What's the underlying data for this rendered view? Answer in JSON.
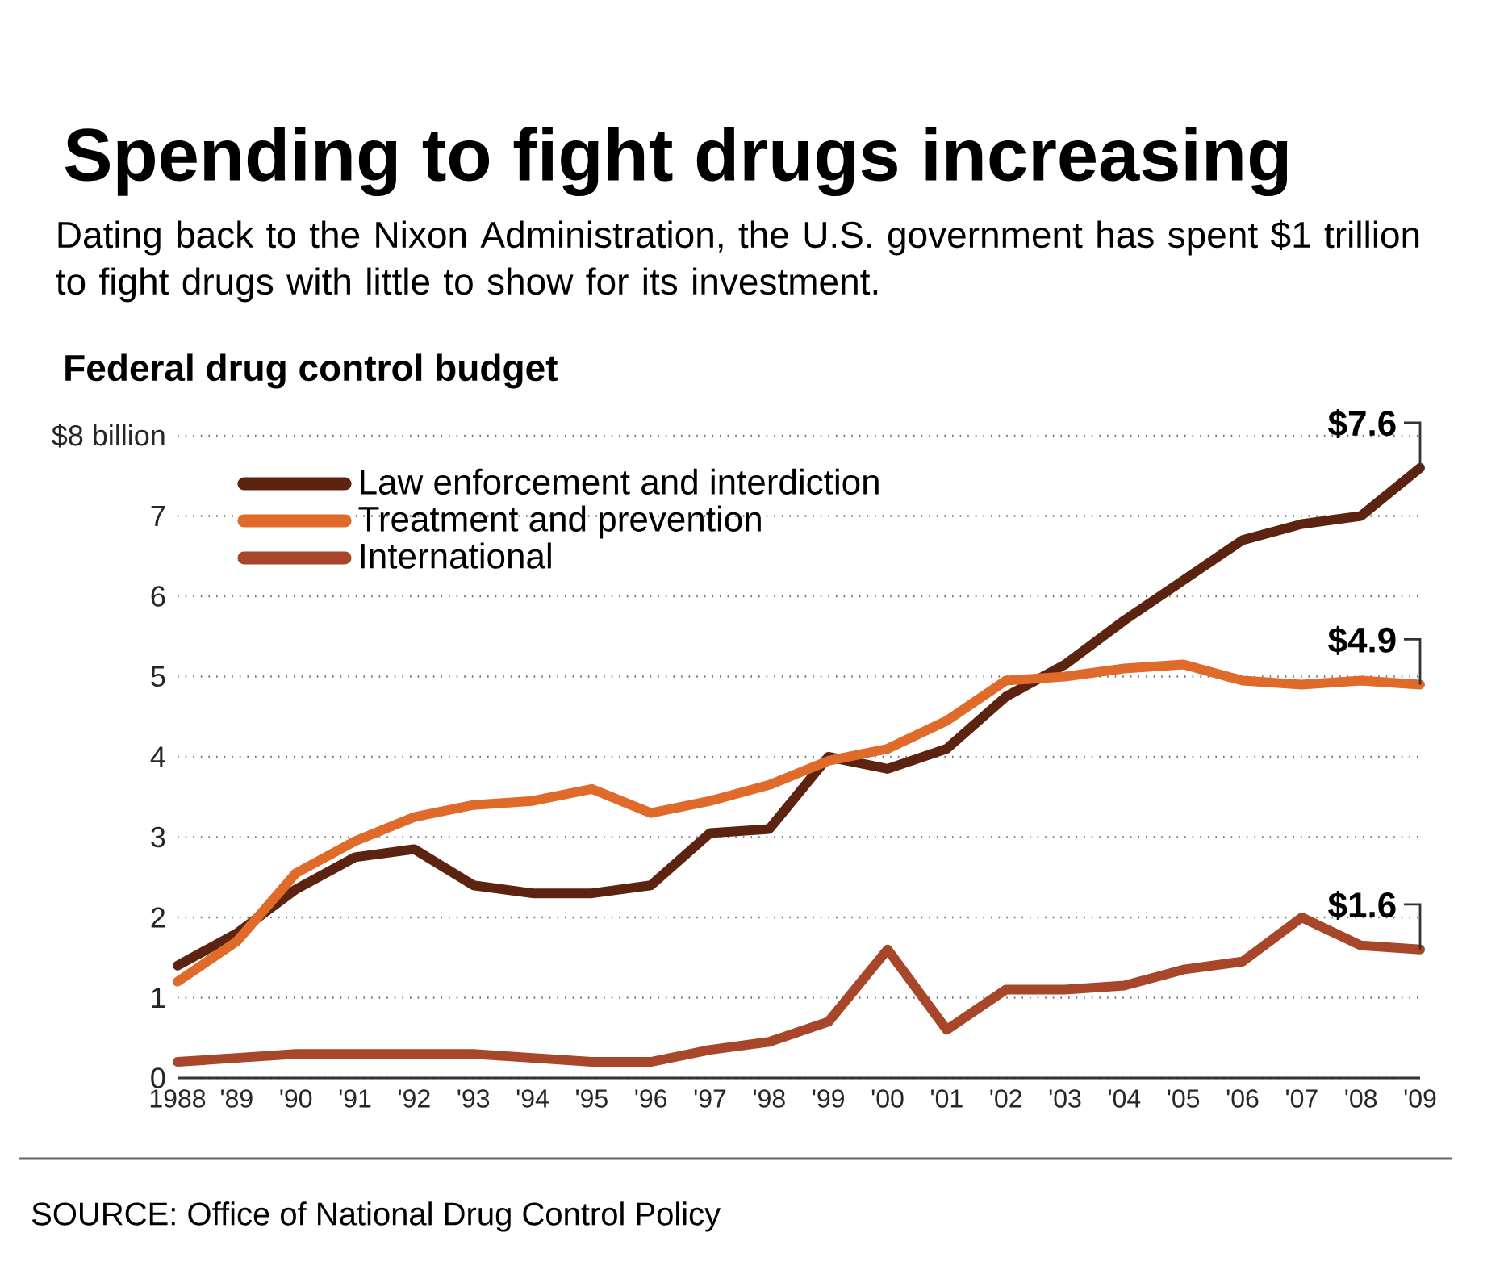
{
  "chart_data": {
    "type": "line",
    "title": "Spending to fight drugs increasing",
    "subtitle": "Dating back to the Nixon Administration, the U.S. government has spent $1 trillion to fight drugs with little to show for its investment.",
    "annotations": [
      "Federal drug control budget",
      "SOURCE: Office of National Drug Control Policy"
    ],
    "x": [
      1988,
      1989,
      1990,
      1991,
      1992,
      1993,
      1994,
      1995,
      1996,
      1997,
      1998,
      1999,
      2000,
      2001,
      2002,
      2003,
      2004,
      2005,
      2006,
      2007,
      2008,
      2009
    ],
    "series": [
      {
        "name": "Law enforcement and interdiction",
        "color": "#5c2410",
        "values": [
          1.4,
          1.8,
          2.35,
          2.75,
          2.85,
          2.4,
          2.3,
          2.3,
          2.4,
          3.05,
          3.1,
          4.0,
          3.85,
          4.1,
          4.75,
          5.15,
          5.7,
          6.2,
          6.7,
          6.9,
          7.0,
          7.6
        ],
        "value_labels": [
          null,
          null,
          null,
          null,
          null,
          null,
          null,
          null,
          null,
          null,
          null,
          null,
          null,
          null,
          null,
          null,
          null,
          null,
          null,
          null,
          null,
          "$7.6"
        ]
      },
      {
        "name": "Treatment and prevention",
        "color": "#e06a2a",
        "values": [
          1.2,
          1.7,
          2.55,
          2.95,
          3.25,
          3.4,
          3.45,
          3.6,
          3.3,
          3.45,
          3.65,
          3.95,
          4.1,
          4.45,
          4.95,
          5.0,
          5.1,
          5.15,
          4.95,
          4.9,
          4.95,
          4.9
        ],
        "value_labels": [
          null,
          null,
          null,
          null,
          null,
          null,
          null,
          null,
          null,
          null,
          null,
          null,
          null,
          null,
          null,
          null,
          null,
          null,
          null,
          null,
          null,
          "$4.9"
        ]
      },
      {
        "name": "International",
        "color": "#a8462a",
        "values": [
          0.2,
          0.25,
          0.3,
          0.3,
          0.3,
          0.3,
          0.25,
          0.2,
          0.2,
          0.35,
          0.45,
          0.7,
          1.6,
          0.6,
          1.1,
          1.1,
          1.15,
          1.35,
          1.45,
          2.0,
          1.65,
          1.6
        ],
        "value_labels": [
          null,
          null,
          null,
          null,
          null,
          null,
          null,
          null,
          null,
          null,
          null,
          null,
          null,
          null,
          null,
          null,
          null,
          null,
          null,
          null,
          null,
          "$1.6"
        ]
      }
    ],
    "xlim": [
      1988,
      2009
    ],
    "xticks": [
      {
        "value": 1988,
        "label": "1988"
      },
      {
        "value": 1989,
        "label": "'89"
      },
      {
        "value": 1990,
        "label": "'90"
      },
      {
        "value": 1991,
        "label": "'91"
      },
      {
        "value": 1992,
        "label": "'92"
      },
      {
        "value": 1993,
        "label": "'93"
      },
      {
        "value": 1994,
        "label": "'94"
      },
      {
        "value": 1995,
        "label": "'95"
      },
      {
        "value": 1996,
        "label": "'96"
      },
      {
        "value": 1997,
        "label": "'97"
      },
      {
        "value": 1998,
        "label": "'98"
      },
      {
        "value": 1999,
        "label": "'99"
      },
      {
        "value": 2000,
        "label": "'00"
      },
      {
        "value": 2001,
        "label": "'01"
      },
      {
        "value": 2002,
        "label": "'02"
      },
      {
        "value": 2003,
        "label": "'03"
      },
      {
        "value": 2004,
        "label": "'04"
      },
      {
        "value": 2005,
        "label": "'05"
      },
      {
        "value": 2006,
        "label": "'06"
      },
      {
        "value": 2007,
        "label": "'07"
      },
      {
        "value": 2008,
        "label": "'08"
      },
      {
        "value": 2009,
        "label": "'09"
      }
    ],
    "ylim": [
      0,
      8
    ],
    "yticks": [
      0,
      1,
      2,
      3,
      4,
      5,
      6,
      7,
      {
        "value": 8,
        "label": "$8 billion"
      }
    ],
    "grid": "y",
    "legend": "top left"
  }
}
